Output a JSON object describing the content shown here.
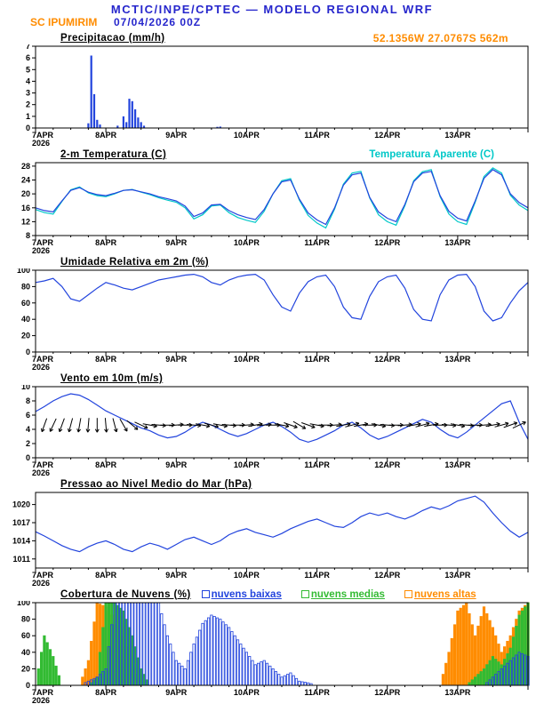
{
  "header": {
    "line1": "MCTIC/INPE/CPTEC — MODELO REGIONAL WRF",
    "station": "SC IPUMIRIM",
    "datetime": "07/04/2026 00Z",
    "coords": "52.1356W 27.0767S 562m",
    "title_color": "#2626cc",
    "accent_color": "#ff8c00"
  },
  "x_axis": {
    "hours_max": 168,
    "major_tick_h": 24,
    "minor_tick_h": 6,
    "start_label_note": "x axis is hours from 7APR2026 00Z to 14APR2026 00Z",
    "ticks": [
      {
        "h": 0,
        "label": "7APR",
        "sub": "2026"
      },
      {
        "h": 24,
        "label": "8APR"
      },
      {
        "h": 48,
        "label": "9APR"
      },
      {
        "h": 72,
        "label": "10APR"
      },
      {
        "h": 96,
        "label": "11APR"
      },
      {
        "h": 120,
        "label": "12APR"
      },
      {
        "h": 144,
        "label": "13APR"
      }
    ]
  },
  "chart_data": [
    {
      "name": "precipitation",
      "type": "bar",
      "title": "Precipitacao (mm/h)",
      "ylim": [
        0,
        7
      ],
      "yticks": [
        0,
        1,
        2,
        3,
        4,
        5,
        6,
        7
      ],
      "color": "#2244dd",
      "points": [
        [
          18,
          0.4
        ],
        [
          19,
          6.2
        ],
        [
          20,
          2.9
        ],
        [
          21,
          0.7
        ],
        [
          22,
          0.3
        ],
        [
          28,
          0.2
        ],
        [
          30,
          1.0
        ],
        [
          31,
          0.5
        ],
        [
          32,
          2.5
        ],
        [
          33,
          2.3
        ],
        [
          34,
          1.6
        ],
        [
          35,
          0.9
        ],
        [
          36,
          0.5
        ],
        [
          37,
          0.2
        ],
        [
          62,
          0.1
        ],
        [
          63,
          0.12
        ]
      ]
    },
    {
      "name": "temperature-2m",
      "type": "line",
      "title": "2-m Temperatura (C)",
      "secondary_title": "Temperatura Aparente (C)",
      "ylim": [
        8,
        29
      ],
      "yticks": [
        8,
        12,
        16,
        20,
        24,
        28
      ],
      "step_h": 3,
      "series": [
        {
          "name": "2-m Temperatura",
          "color": "#2244dd",
          "values": [
            16,
            15.2,
            14.8,
            18,
            21,
            21.8,
            20.5,
            19.8,
            19.5,
            20.2,
            21,
            21.2,
            20.6,
            20,
            19.2,
            18.6,
            18,
            16.5,
            13.5,
            14.5,
            16.8,
            17,
            15.2,
            14,
            13.2,
            12.6,
            15.5,
            20,
            23.5,
            24,
            18.5,
            14.5,
            12.5,
            11.2,
            16,
            22.5,
            25.5,
            26,
            19,
            14.8,
            13,
            12,
            17,
            23.5,
            26,
            26.5,
            19.5,
            15,
            13,
            12.2,
            18,
            24.5,
            27,
            25.5,
            20,
            17.5,
            16
          ]
        },
        {
          "name": "Temperatura Aparente",
          "color": "#00c8c8",
          "values": [
            15.5,
            14.6,
            14.2,
            17.8,
            21.2,
            22,
            20.3,
            19.5,
            19.2,
            20,
            21,
            21.3,
            20.5,
            19.8,
            18.9,
            18.2,
            17.6,
            16,
            12.8,
            14,
            16.5,
            16.8,
            14.6,
            13.2,
            12.4,
            11.8,
            15,
            20,
            23.8,
            24.4,
            18.2,
            13.8,
            11.6,
            10.2,
            15.6,
            22.8,
            26,
            26.5,
            18.8,
            14,
            12,
            11,
            16.6,
            23.8,
            26.4,
            27,
            19.2,
            14.2,
            12,
            11.2,
            17.6,
            25,
            27.5,
            26,
            19.6,
            16.8,
            15.2
          ]
        }
      ]
    },
    {
      "name": "relative-humidity-2m",
      "type": "line",
      "title": "Umidade Relativa em 2m (%)",
      "ylim": [
        0,
        100
      ],
      "yticks": [
        0,
        20,
        40,
        60,
        80,
        100
      ],
      "step_h": 3,
      "series": [
        {
          "name": "Umidade Relativa",
          "color": "#2244dd",
          "values": [
            85,
            87,
            90,
            80,
            65,
            62,
            70,
            78,
            85,
            82,
            78,
            76,
            80,
            84,
            88,
            90,
            92,
            94,
            95,
            92,
            85,
            82,
            88,
            92,
            94,
            95,
            88,
            70,
            55,
            50,
            72,
            86,
            92,
            94,
            80,
            55,
            42,
            40,
            68,
            86,
            92,
            94,
            78,
            52,
            40,
            38,
            70,
            88,
            94,
            95,
            80,
            50,
            38,
            42,
            60,
            75,
            85
          ]
        }
      ]
    },
    {
      "name": "wind-10m",
      "type": "line-arrows",
      "title": "Vento em 10m (m/s)",
      "ylim": [
        0,
        10
      ],
      "yticks": [
        0,
        2,
        4,
        6,
        8,
        10
      ],
      "step_h": 3,
      "arrow_y": 4.6,
      "series": [
        {
          "name": "Velocidade do Vento",
          "color": "#2244dd",
          "values": [
            6.5,
            7.2,
            8,
            8.6,
            9,
            8.8,
            8.2,
            7.4,
            6.6,
            6,
            5.4,
            4.8,
            4.2,
            3.8,
            3.2,
            2.8,
            3,
            3.6,
            4.4,
            5,
            4.6,
            4,
            3.4,
            3,
            3.4,
            4,
            4.6,
            5,
            4.4,
            3.6,
            2.6,
            2.2,
            2.6,
            3.2,
            3.8,
            4.6,
            5,
            4.2,
            3.2,
            2.6,
            3,
            3.6,
            4.2,
            4.8,
            5.4,
            5,
            4,
            3.2,
            2.8,
            3.6,
            4.6,
            5.6,
            6.6,
            7.6,
            8,
            5,
            2.6
          ]
        }
      ],
      "directions_deg": [
        195,
        200,
        205,
        200,
        195,
        190,
        185,
        180,
        175,
        165,
        150,
        130,
        115,
        100,
        95,
        90,
        85,
        90,
        95,
        100,
        105,
        100,
        95,
        90,
        85,
        80,
        85,
        90,
        100,
        110,
        120,
        110,
        100,
        90,
        85,
        80,
        75,
        80,
        90,
        100,
        95,
        90,
        85,
        80,
        75,
        80,
        90,
        95,
        100,
        95,
        90,
        85,
        80,
        75,
        70,
        65,
        60
      ]
    },
    {
      "name": "mean-sea-level-pressure",
      "type": "line",
      "title": "Pressao ao Nivel Medio do Mar (hPa)",
      "ylim": [
        1009.5,
        1022
      ],
      "yticks": [
        1011,
        1014,
        1017,
        1020
      ],
      "step_h": 3,
      "series": [
        {
          "name": "Pressao",
          "color": "#2244dd",
          "values": [
            1015.5,
            1014.8,
            1014,
            1013.2,
            1012.6,
            1012.2,
            1013,
            1013.6,
            1014,
            1013.4,
            1012.6,
            1012.2,
            1013,
            1013.6,
            1013.2,
            1012.6,
            1013.4,
            1014.2,
            1014.6,
            1014,
            1013.4,
            1014,
            1015,
            1015.6,
            1016,
            1015.4,
            1015,
            1014.6,
            1015.2,
            1016,
            1016.6,
            1017.2,
            1017.6,
            1017,
            1016.4,
            1016.2,
            1017,
            1018,
            1018.6,
            1018.2,
            1018.6,
            1018,
            1017.6,
            1018.2,
            1019,
            1019.6,
            1019.2,
            1019.8,
            1020.6,
            1021,
            1021.4,
            1020.4,
            1018.6,
            1017,
            1015.6,
            1014.6,
            1015.4
          ]
        }
      ]
    },
    {
      "name": "cloud-cover",
      "type": "cloud-bars",
      "title": "Cobertura de Nuvens (%)",
      "ylim": [
        0,
        100
      ],
      "yticks": [
        0,
        20,
        40,
        60,
        80,
        100
      ],
      "step_h": 3,
      "series": [
        {
          "name": "nuvens baixas",
          "color": "#2244dd",
          "values": [
            0,
            0,
            0,
            0,
            0,
            0,
            5,
            10,
            20,
            100,
            100,
            100,
            100,
            100,
            100,
            60,
            30,
            20,
            50,
            75,
            85,
            80,
            70,
            55,
            40,
            25,
            30,
            20,
            10,
            15,
            5,
            3,
            0,
            0,
            0,
            0,
            0,
            0,
            0,
            0,
            0,
            0,
            0,
            0,
            0,
            0,
            0,
            0,
            0,
            0,
            0,
            0,
            10,
            20,
            30,
            40,
            35
          ]
        },
        {
          "name": "nuvens medias",
          "color": "#33bb33",
          "values": [
            0,
            60,
            35,
            0,
            0,
            0,
            0,
            10,
            100,
            100,
            90,
            60,
            20,
            0,
            0,
            0,
            0,
            0,
            0,
            0,
            0,
            0,
            0,
            0,
            0,
            0,
            0,
            0,
            0,
            0,
            0,
            0,
            0,
            0,
            0,
            0,
            0,
            0,
            0,
            0,
            0,
            0,
            0,
            0,
            0,
            0,
            0,
            0,
            0,
            0,
            10,
            20,
            35,
            25,
            45,
            85,
            100
          ]
        },
        {
          "name": "nuvens altas",
          "color": "#ff8c00",
          "values": [
            0,
            0,
            0,
            0,
            0,
            0,
            30,
            100,
            95,
            80,
            60,
            20,
            0,
            0,
            0,
            0,
            0,
            0,
            0,
            0,
            0,
            0,
            0,
            0,
            0,
            0,
            0,
            0,
            0,
            0,
            0,
            0,
            0,
            0,
            0,
            0,
            0,
            0,
            0,
            0,
            0,
            0,
            0,
            0,
            0,
            0,
            0,
            40,
            90,
            100,
            60,
            95,
            70,
            40,
            60,
            90,
            100
          ]
        }
      ]
    }
  ]
}
